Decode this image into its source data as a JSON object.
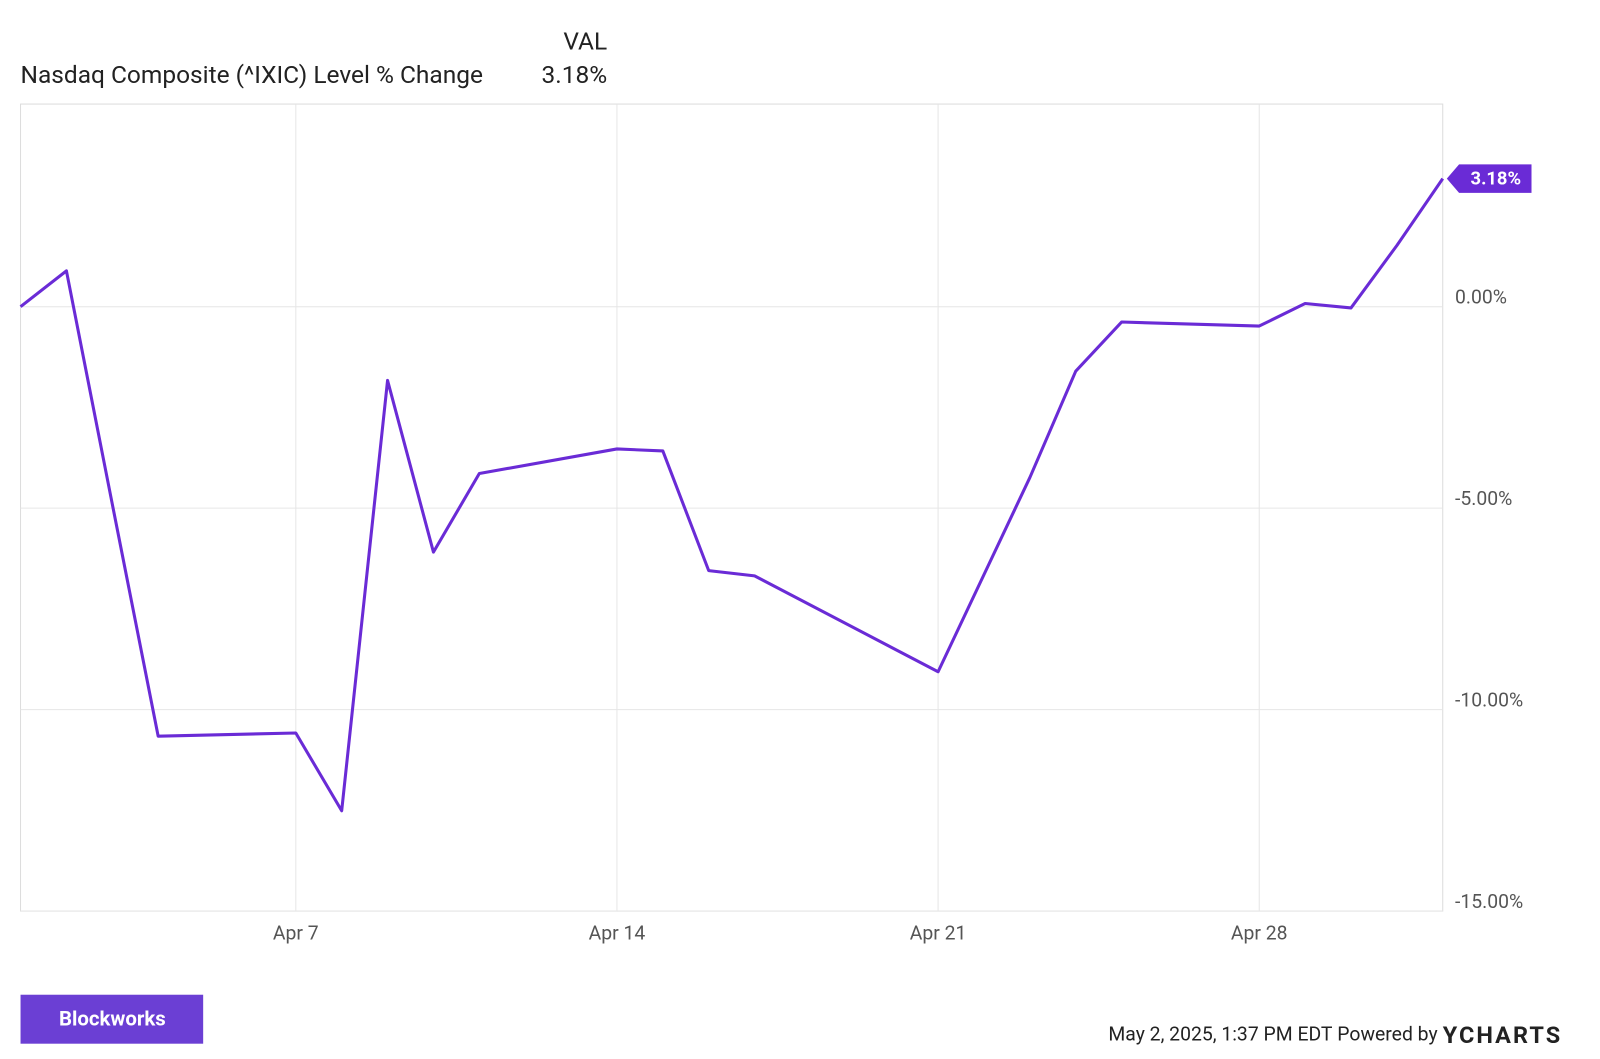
{
  "chart_data": {
    "type": "line",
    "legend_header": "VAL",
    "x": [
      "Apr 1",
      "Apr 2",
      "Apr 3",
      "Apr 4",
      "Apr 7",
      "Apr 8",
      "Apr 9",
      "Apr 10",
      "Apr 11",
      "Apr 14",
      "Apr 15",
      "Apr 16",
      "Apr 17",
      "Apr 21",
      "Apr 22",
      "Apr 23",
      "Apr 24",
      "Apr 25",
      "Apr 28",
      "Apr 29",
      "Apr 30",
      "May 1",
      "May 2"
    ],
    "series": [
      {
        "name": "Nasdaq Composite (^IXIC) Level % Change",
        "color": "#6a2bd6",
        "latest_label": "3.18%",
        "values": [
          0,
          0.89,
          -4.9,
          -10.66,
          -10.58,
          -12.51,
          -1.83,
          -6.09,
          -4.14,
          -3.53,
          -3.58,
          -6.55,
          -6.68,
          -9.06,
          -6.65,
          -4.24,
          -1.6,
          -0.38,
          -0.48,
          0.08,
          -0.03,
          1.52,
          3.18
        ]
      }
    ],
    "xlim": [
      "Apr 1",
      "May 2"
    ],
    "xticks": [
      "Apr 7",
      "Apr 14",
      "Apr 21",
      "Apr 28"
    ],
    "ylim": [
      -15,
      5.03
    ],
    "yticks": [
      {
        "value": 0,
        "label": "0.00%"
      },
      {
        "value": -5,
        "label": "-5.00%"
      },
      {
        "value": -10,
        "label": "-10.00%"
      },
      {
        "value": -15,
        "label": "-15.00%"
      }
    ],
    "grid": true,
    "footer": {
      "timestamp": "May 2, 2025, 1:37 PM EDT",
      "powered_by": "Powered by",
      "brand": "YCHARTS",
      "logo": "Blockworks"
    }
  }
}
